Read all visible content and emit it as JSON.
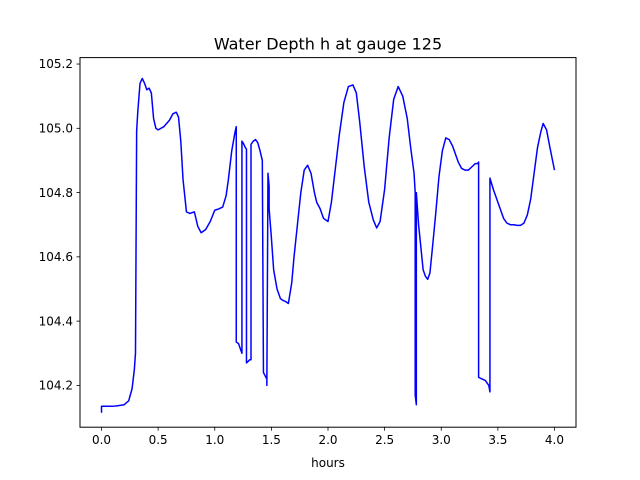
{
  "chart_data": {
    "type": "line",
    "title": "Water Depth h at gauge 125",
    "xlabel": "hours",
    "ylabel": "",
    "xlim": [
      -0.19,
      4.19
    ],
    "ylim": [
      104.07,
      105.22
    ],
    "xticks": [
      0.0,
      0.5,
      1.0,
      1.5,
      2.0,
      2.5,
      3.0,
      3.5,
      4.0
    ],
    "xtick_labels": [
      "0.0",
      "0.5",
      "1.0",
      "1.5",
      "2.0",
      "2.5",
      "3.0",
      "3.5",
      "4.0"
    ],
    "yticks": [
      104.2,
      104.4,
      104.6,
      104.8,
      105.0,
      105.2
    ],
    "ytick_labels": [
      "104.2",
      "104.4",
      "104.6",
      "104.8",
      "105.0",
      "105.2"
    ],
    "grid": false,
    "legend": "none",
    "series": [
      {
        "color": "#0000ff",
        "x": [
          0.0,
          0.0,
          0.05,
          0.1,
          0.15,
          0.2,
          0.24,
          0.27,
          0.29,
          0.3,
          0.31,
          0.31,
          0.32,
          0.34,
          0.36,
          0.38,
          0.4,
          0.42,
          0.44,
          0.46,
          0.48,
          0.5,
          0.55,
          0.6,
          0.63,
          0.66,
          0.68,
          0.7,
          0.72,
          0.75,
          0.78,
          0.82,
          0.85,
          0.88,
          0.92,
          0.96,
          1.0,
          1.04,
          1.07,
          1.1,
          1.12,
          1.15,
          1.18,
          1.19,
          1.19,
          1.21,
          1.23,
          1.24,
          1.24,
          1.25,
          1.27,
          1.28,
          1.28,
          1.31,
          1.32,
          1.32,
          1.34,
          1.36,
          1.38,
          1.4,
          1.42,
          1.43,
          1.46,
          1.46,
          1.47,
          1.48,
          1.48,
          1.5,
          1.52,
          1.55,
          1.58,
          1.6,
          1.63,
          1.65,
          1.68,
          1.7,
          1.73,
          1.76,
          1.79,
          1.82,
          1.85,
          1.88,
          1.9,
          1.93,
          1.96,
          2.0,
          2.03,
          2.06,
          2.1,
          2.14,
          2.18,
          2.22,
          2.25,
          2.28,
          2.32,
          2.36,
          2.4,
          2.43,
          2.46,
          2.5,
          2.54,
          2.58,
          2.62,
          2.66,
          2.7,
          2.73,
          2.76,
          2.77,
          2.77,
          2.78,
          2.78,
          2.79,
          2.8,
          2.82,
          2.84,
          2.86,
          2.88,
          2.9,
          2.92,
          2.95,
          2.98,
          3.01,
          3.04,
          3.07,
          3.1,
          3.12,
          3.15,
          3.18,
          3.21,
          3.24,
          3.27,
          3.3,
          3.32,
          3.33,
          3.33,
          3.36,
          3.39,
          3.42,
          3.43,
          3.43,
          3.46,
          3.49,
          3.52,
          3.55,
          3.58,
          3.61,
          3.64,
          3.67,
          3.7,
          3.73,
          3.76,
          3.79,
          3.82,
          3.85,
          3.88,
          3.9,
          3.93,
          3.96,
          4.0
        ],
        "y": [
          104.115,
          104.135,
          104.135,
          104.135,
          104.137,
          104.14,
          104.152,
          104.19,
          104.25,
          104.3,
          104.98,
          104.99,
          105.05,
          105.14,
          105.155,
          105.14,
          105.12,
          105.125,
          105.11,
          105.03,
          105.0,
          104.995,
          105.005,
          105.025,
          105.045,
          105.05,
          105.035,
          104.96,
          104.84,
          104.74,
          104.735,
          104.74,
          104.695,
          104.675,
          104.685,
          104.71,
          104.745,
          104.75,
          104.755,
          104.79,
          104.84,
          104.93,
          104.99,
          105.005,
          104.335,
          104.33,
          104.31,
          104.3,
          104.96,
          104.955,
          104.94,
          104.935,
          104.27,
          104.28,
          104.28,
          104.95,
          104.96,
          104.965,
          104.955,
          104.93,
          104.9,
          104.24,
          104.22,
          104.2,
          104.86,
          104.82,
          104.75,
          104.66,
          104.56,
          104.5,
          104.47,
          104.465,
          104.46,
          104.455,
          104.52,
          104.6,
          104.7,
          104.8,
          104.87,
          104.885,
          104.86,
          104.8,
          104.77,
          104.75,
          104.72,
          104.71,
          104.77,
          104.86,
          104.98,
          105.08,
          105.13,
          105.135,
          105.11,
          105.02,
          104.88,
          104.77,
          104.715,
          104.69,
          104.71,
          104.81,
          104.97,
          105.09,
          105.13,
          105.1,
          105.03,
          104.94,
          104.86,
          104.8,
          104.17,
          104.14,
          104.8,
          104.75,
          104.7,
          104.63,
          104.56,
          104.54,
          104.53,
          104.55,
          104.62,
          104.73,
          104.85,
          104.93,
          104.97,
          104.965,
          104.945,
          104.925,
          104.895,
          104.875,
          104.87,
          104.87,
          104.88,
          104.89,
          104.89,
          104.895,
          104.225,
          104.22,
          104.215,
          104.2,
          104.18,
          104.845,
          104.81,
          104.78,
          104.75,
          104.72,
          104.705,
          104.7,
          104.7,
          104.698,
          104.698,
          104.705,
          104.73,
          104.78,
          104.86,
          104.94,
          104.99,
          105.015,
          104.995,
          104.94,
          104.87
        ]
      }
    ]
  }
}
